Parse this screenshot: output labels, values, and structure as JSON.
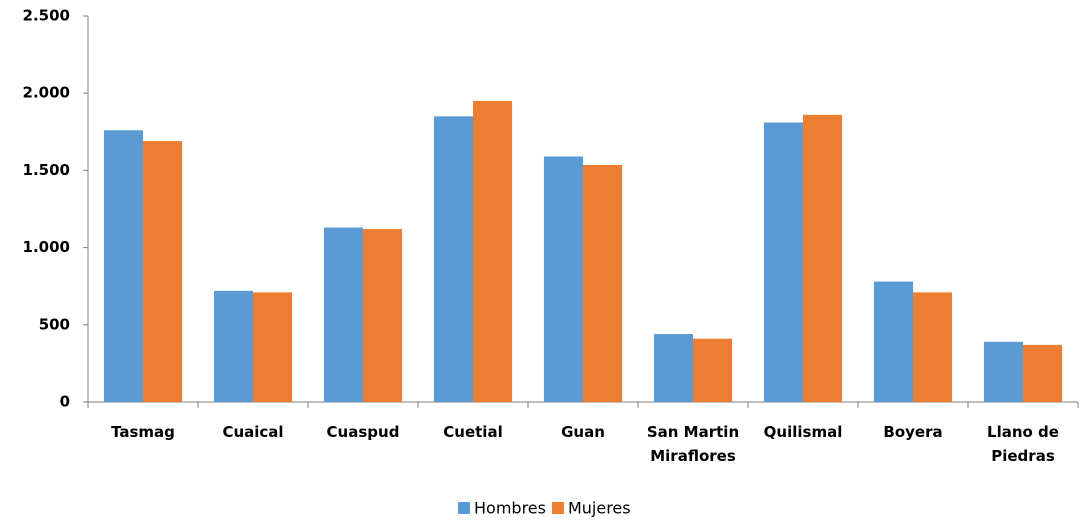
{
  "chart_data": {
    "type": "bar",
    "categories": [
      "Tasmag",
      "Cuaical",
      "Cuaspud",
      "Cuetial",
      "Guan",
      "San Martin Miraflores",
      "Quilismal",
      "Boyera",
      "Llano de Piedras"
    ],
    "series": [
      {
        "name": "Hombres",
        "color": "#5b9bd5",
        "values": [
          1760,
          720,
          1130,
          1850,
          1590,
          440,
          1810,
          780,
          390
        ]
      },
      {
        "name": "Mujeres",
        "color": "#ed7d31",
        "values": [
          1690,
          710,
          1120,
          1950,
          1535,
          410,
          1860,
          710,
          370
        ]
      }
    ],
    "ylim": [
      0,
      2500
    ],
    "yticks": [
      0,
      500,
      {
        "value": 1000,
        "label": "1.000"
      },
      {
        "value": 1500,
        "label": "1.500"
      },
      {
        "value": 2000,
        "label": "2.000"
      },
      {
        "value": 2500,
        "label": "2.500"
      }
    ],
    "grid": false,
    "legend": "bottom"
  }
}
